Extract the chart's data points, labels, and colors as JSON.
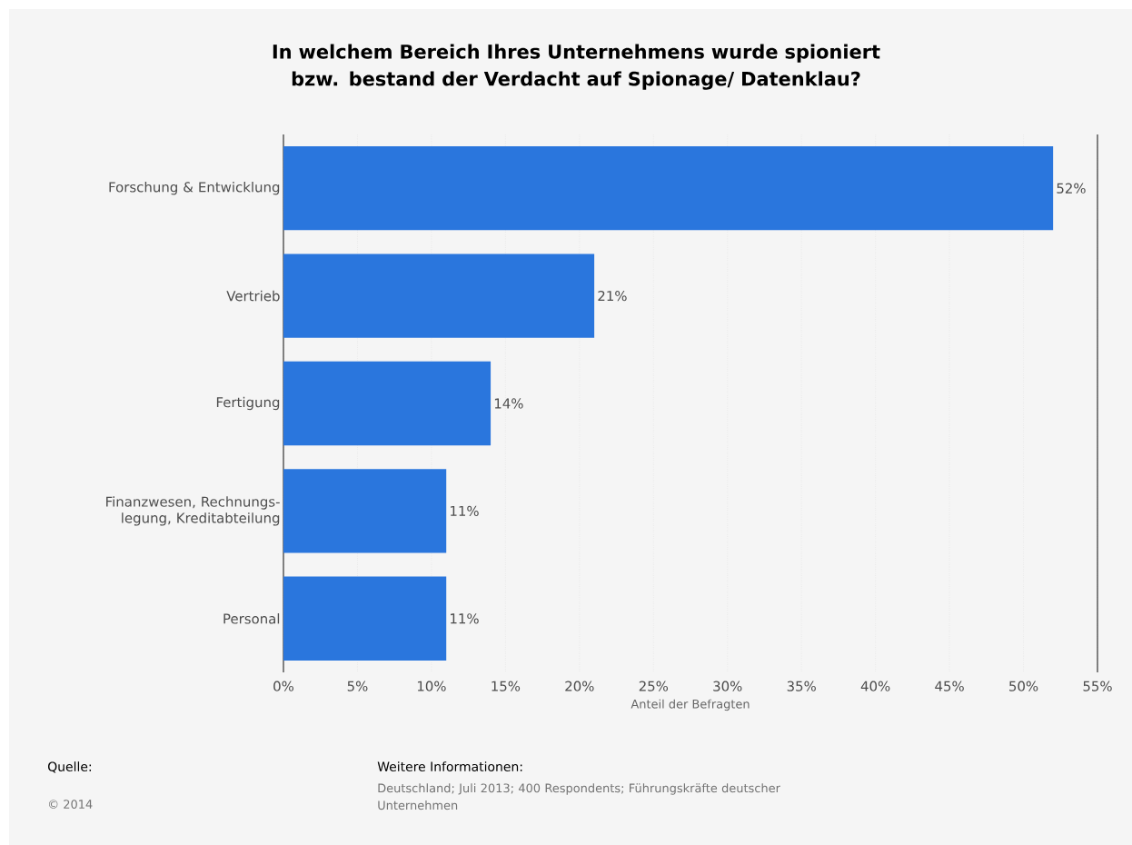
{
  "chart_data": {
    "type": "bar",
    "orientation": "horizontal",
    "title": "In welchem Bereich Ihres Unternehmens wurde spioniert bzw. bestand der Verdacht auf Spionage/ Datenklau?",
    "categories": [
      "Forschung & Entwicklung",
      "Vertrieb",
      "Fertigung",
      "Finanzwesen, Rechnungs-legung, Kreditabteilung",
      "Personal"
    ],
    "values": [
      52,
      21,
      14,
      11,
      11
    ],
    "value_labels": [
      "52%",
      "21%",
      "14%",
      "11%",
      "11%"
    ],
    "color": "#2a76dd",
    "xlabel": "Anteil der Befragten",
    "xlim": [
      0,
      55
    ],
    "xticks": [
      {
        "value": 0,
        "label": "0%"
      },
      {
        "value": 5,
        "label": "5%"
      },
      {
        "value": 10,
        "label": "10%"
      },
      {
        "value": 15,
        "label": "15%"
      },
      {
        "value": 20,
        "label": "20%"
      },
      {
        "value": 25,
        "label": "25%"
      },
      {
        "value": 30,
        "label": "30%"
      },
      {
        "value": 35,
        "label": "35%"
      },
      {
        "value": 40,
        "label": "40%"
      },
      {
        "value": 45,
        "label": "45%"
      },
      {
        "value": 50,
        "label": "50%"
      },
      {
        "value": 55,
        "label": "55%"
      }
    ],
    "grid": "x",
    "annotations": [
      "Quelle:",
      "© 2014",
      "Weitere Informationen:",
      "Deutschland; Juli 2013; 400 Respondents; Führungskräfte deutscher Unternehmen"
    ]
  }
}
